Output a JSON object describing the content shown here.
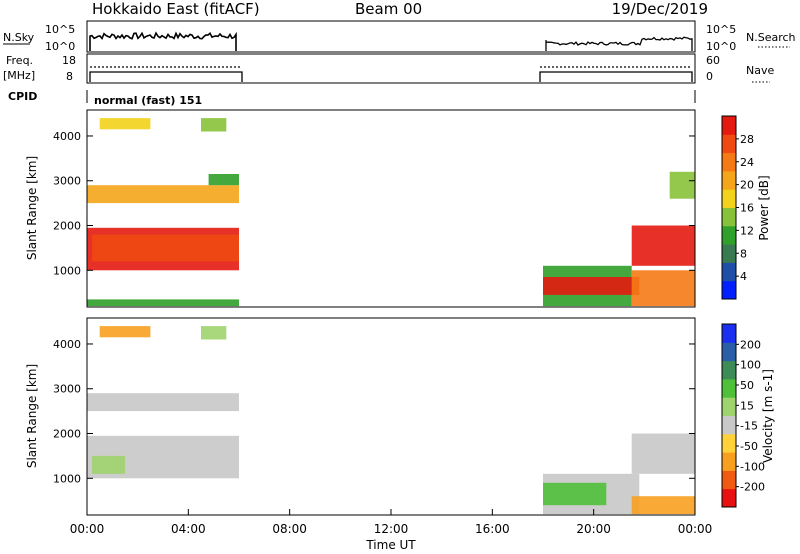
{
  "header": {
    "station": "Hokkaido East (fitACF)",
    "beam": "Beam 00",
    "date": "19/Dec/2019"
  },
  "colors": {
    "power": [
      "#0020ff",
      "#1f4fa8",
      "#3a7a50",
      "#2fa02a",
      "#88c23a",
      "#f2d21a",
      "#f5a51a",
      "#f57a15",
      "#ee4a12",
      "#e41a10"
    ],
    "velocity": [
      "#e81010",
      "#f05a12",
      "#f7a020",
      "#ffd23a",
      "#c8c8c8",
      "#9fd36e",
      "#4fc03a",
      "#3d8c58",
      "#2a5fa8",
      "#1b2ff0"
    ]
  },
  "chart_data": [
    {
      "type": "line",
      "name": "nsky-nsearch",
      "left_label": "N.Sky",
      "right_label": "N.Search",
      "left_ticks": [
        "10^5",
        "10^0"
      ],
      "right_ticks": [
        "10^5",
        "10^0"
      ],
      "segments": [
        [
          0.0,
          6.0
        ],
        [
          18.0,
          24.0
        ]
      ]
    },
    {
      "type": "line",
      "name": "freq-nave",
      "left_label": "Freq.",
      "left_unit": "[MHz]",
      "right_label": "Nave",
      "left_ticks": [
        "18",
        "8"
      ],
      "right_ticks": [
        "60",
        "0"
      ]
    },
    {
      "type": "bar",
      "name": "cpid",
      "label": "CPID",
      "mode": "normal (fast) 151"
    },
    {
      "type": "heatmap",
      "name": "power",
      "ylabel": "Slant Range [km]",
      "yticks": [
        1000,
        2000,
        3000,
        4000
      ],
      "ylim": [
        180,
        4580
      ],
      "colorbar_label": "Power [dB]",
      "colorbar_ticks": [
        "4",
        "8",
        "12",
        "16",
        "20",
        "24",
        "28"
      ],
      "regions": [
        {
          "t": [
            0,
            6
          ],
          "r": [
            1000,
            1950
          ],
          "c": 9
        },
        {
          "t": [
            0.2,
            6
          ],
          "r": [
            1200,
            1800
          ],
          "c": 8
        },
        {
          "t": [
            0,
            6
          ],
          "r": [
            2500,
            2900
          ],
          "c": 6
        },
        {
          "t": [
            0.5,
            2.5
          ],
          "r": [
            4150,
            4400
          ],
          "c": 5
        },
        {
          "t": [
            4.5,
            5.5
          ],
          "r": [
            4100,
            4400
          ],
          "c": 4
        },
        {
          "t": [
            4.8,
            6
          ],
          "r": [
            2900,
            3150
          ],
          "c": 3
        },
        {
          "t": [
            0,
            6
          ],
          "r": [
            200,
            350
          ],
          "c": 3
        },
        {
          "t": [
            18,
            21.5
          ],
          "r": [
            200,
            1100
          ],
          "c": 3
        },
        {
          "t": [
            18,
            21.8
          ],
          "r": [
            450,
            850
          ],
          "c": 9
        },
        {
          "t": [
            21.5,
            24
          ],
          "r": [
            1100,
            2000
          ],
          "c": 9
        },
        {
          "t": [
            21.5,
            24
          ],
          "r": [
            200,
            1000
          ],
          "c": 7
        },
        {
          "t": [
            23,
            24
          ],
          "r": [
            2600,
            3200
          ],
          "c": 4
        }
      ]
    },
    {
      "type": "heatmap",
      "name": "velocity",
      "xlabel": "Time UT",
      "ylabel": "Slant Range [km]",
      "xticks": [
        "00:00",
        "04:00",
        "08:00",
        "12:00",
        "16:00",
        "20:00",
        "00:00"
      ],
      "xlim": [
        0,
        24
      ],
      "yticks": [
        1000,
        2000,
        3000,
        4000
      ],
      "ylim": [
        180,
        4580
      ],
      "colorbar_label": "Velocity [m s-1]",
      "colorbar_ticks": [
        "-200",
        "-100",
        "-50",
        "-15",
        "15",
        "50",
        "100",
        "200"
      ],
      "regions": [
        {
          "t": [
            0,
            6
          ],
          "r": [
            1000,
            1950
          ],
          "c": 4
        },
        {
          "t": [
            0.2,
            1.5
          ],
          "r": [
            1100,
            1500
          ],
          "c": 5
        },
        {
          "t": [
            0,
            6
          ],
          "r": [
            2500,
            2900
          ],
          "c": 4
        },
        {
          "t": [
            0.5,
            2.5
          ],
          "r": [
            4150,
            4400
          ],
          "c": 2
        },
        {
          "t": [
            4.5,
            5.5
          ],
          "r": [
            4100,
            4400
          ],
          "c": 5
        },
        {
          "t": [
            18,
            21.8
          ],
          "r": [
            200,
            1100
          ],
          "c": 4
        },
        {
          "t": [
            18,
            20.5
          ],
          "r": [
            400,
            900
          ],
          "c": 6
        },
        {
          "t": [
            21.5,
            24
          ],
          "r": [
            1100,
            2000
          ],
          "c": 4
        },
        {
          "t": [
            21.5,
            24
          ],
          "r": [
            200,
            600
          ],
          "c": 2
        }
      ]
    }
  ]
}
